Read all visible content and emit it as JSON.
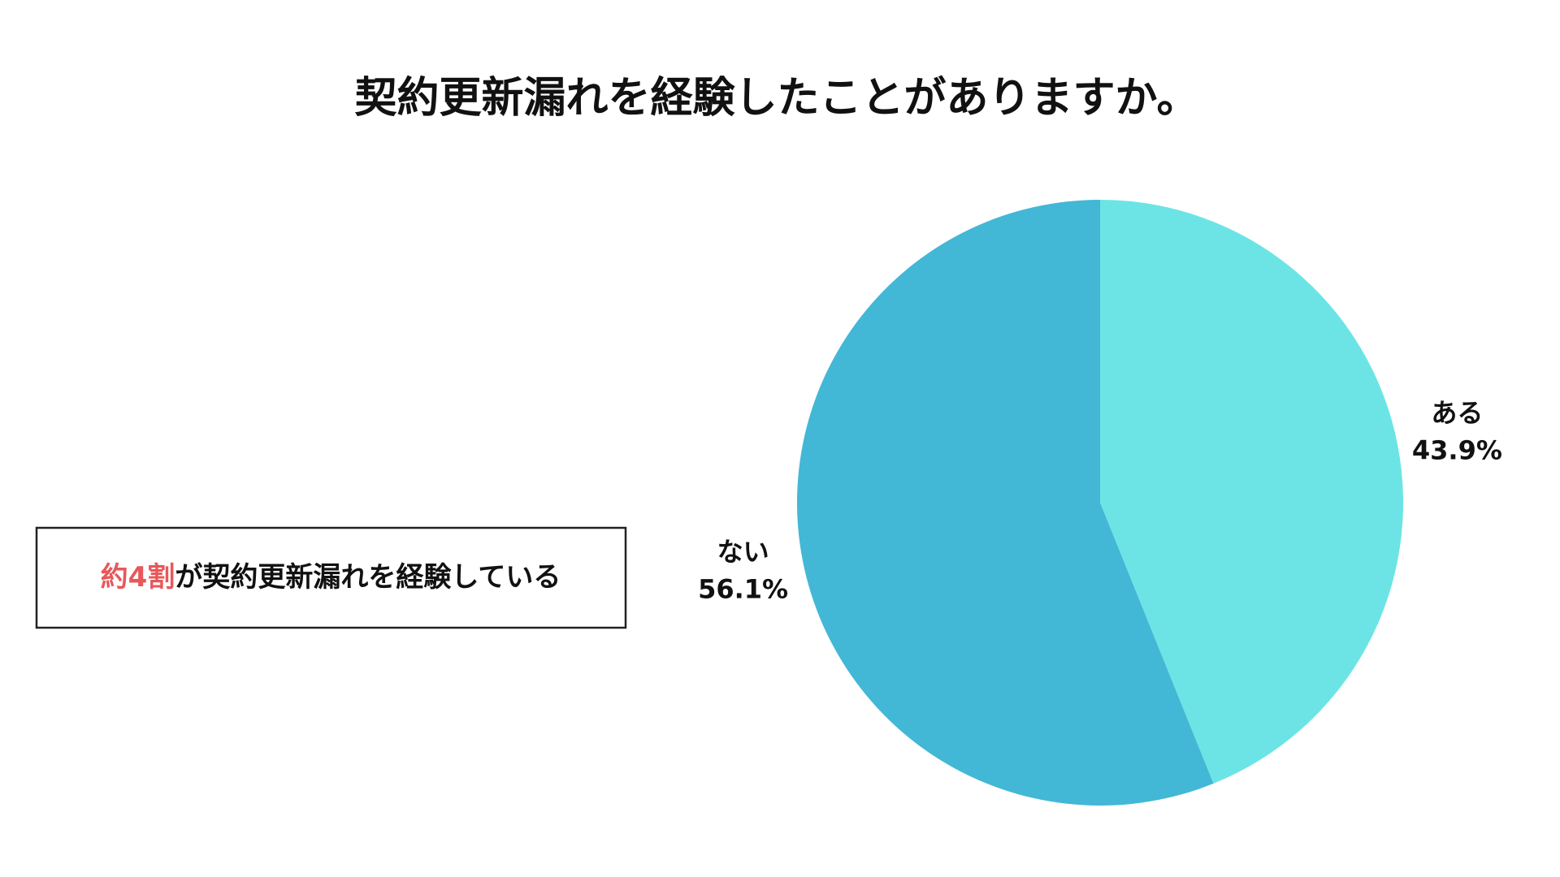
{
  "chart_data": {
    "type": "pie",
    "title": "契約更新漏れを経験したことがありますか。",
    "categories": [
      "ある",
      "ない"
    ],
    "values": [
      43.9,
      56.1
    ],
    "value_labels": [
      "43.9%",
      "56.1%"
    ],
    "colors": [
      "#6ce4e6",
      "#43b7d6"
    ],
    "annotation": {
      "highlight": "約4割",
      "highlight_color": "#e8585a",
      "text": "が契約更新漏れを経験している"
    }
  }
}
